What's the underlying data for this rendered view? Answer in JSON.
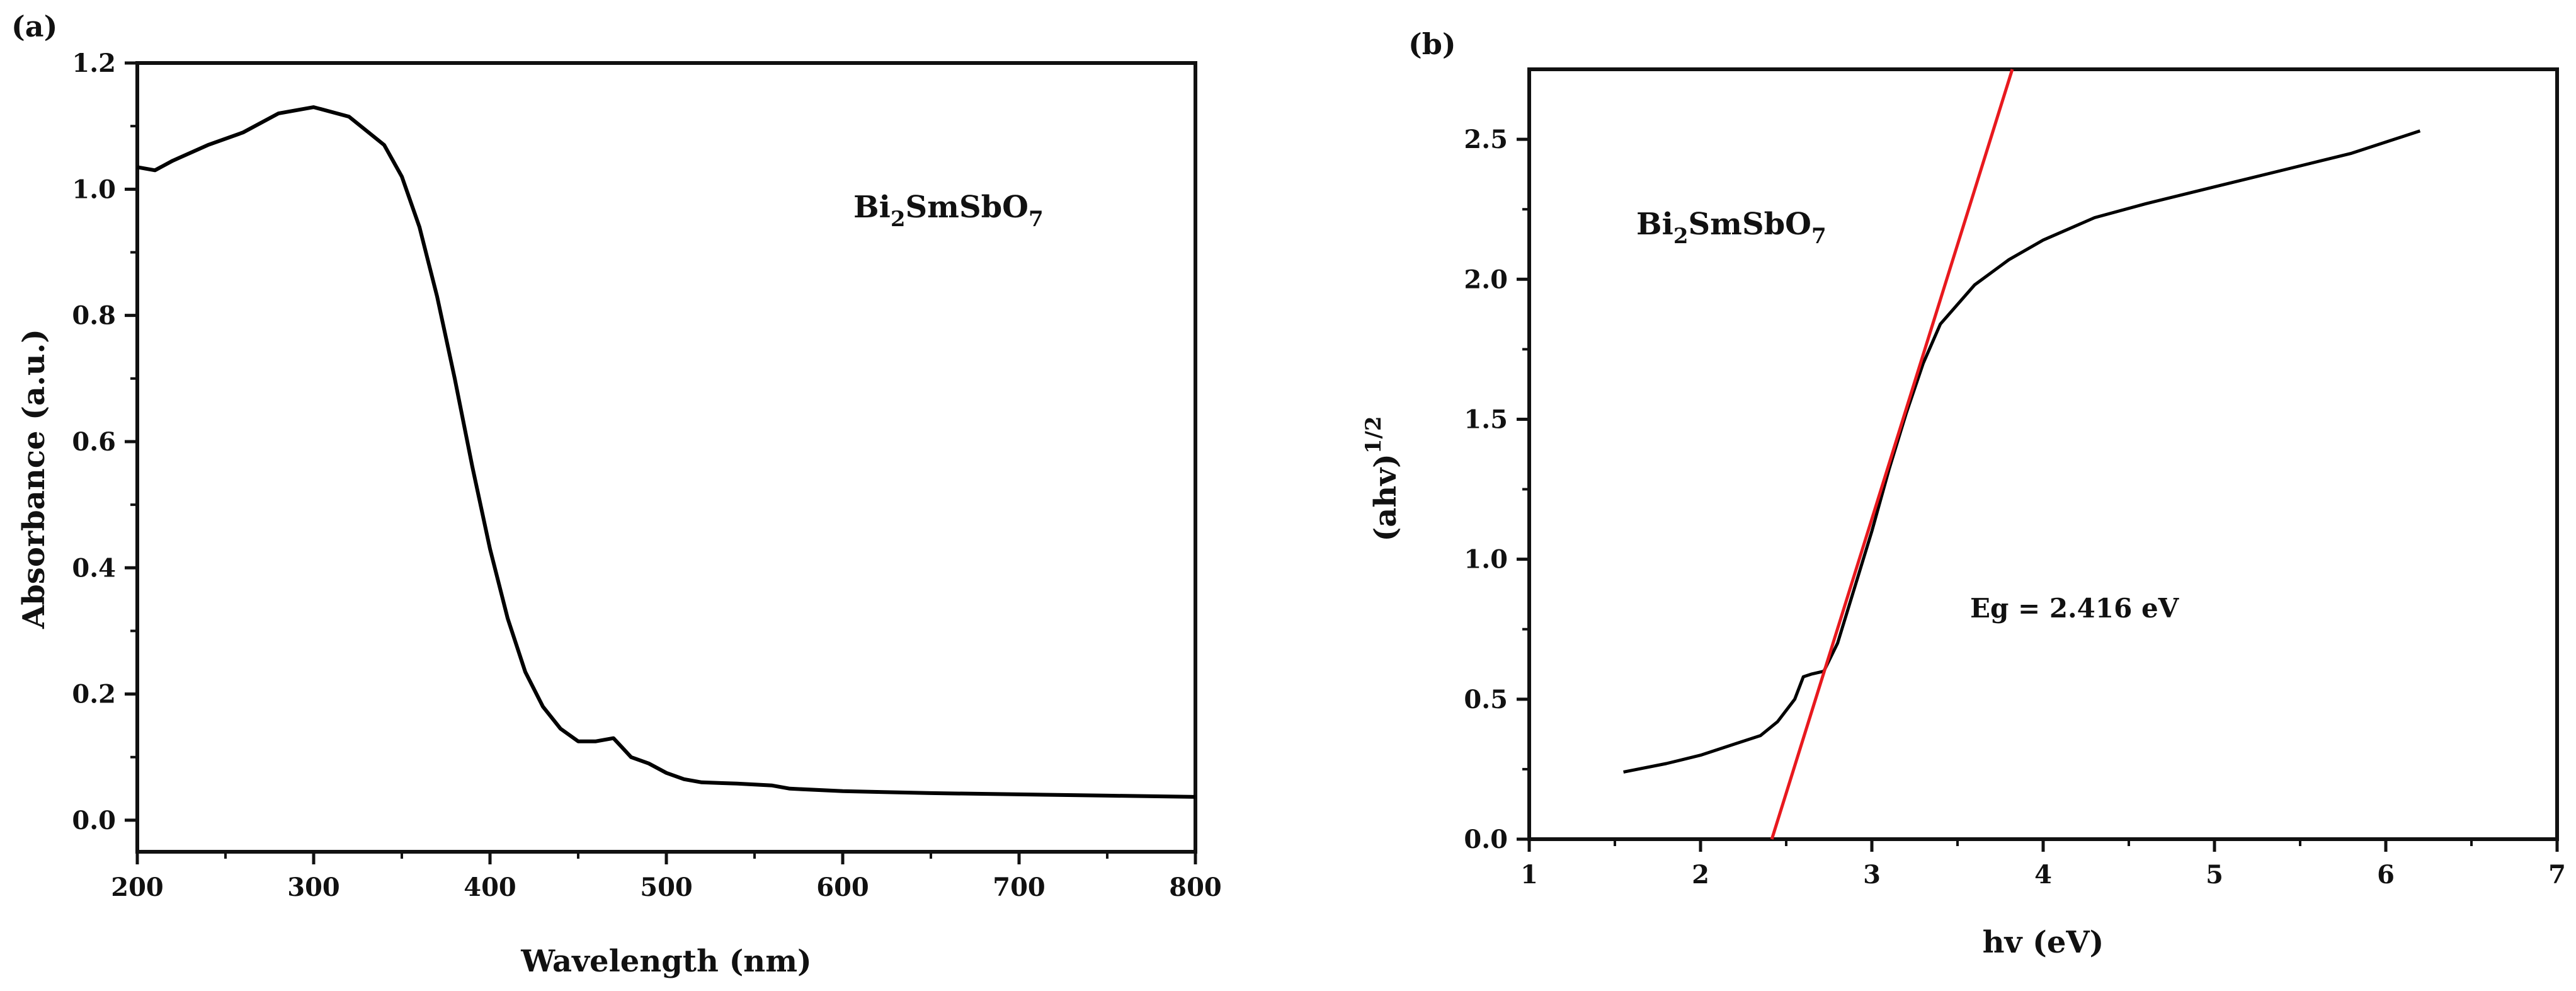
{
  "chart_data": [
    {
      "panel": "(a)",
      "type": "line",
      "xlabel": "Wavelength (nm)",
      "ylabel": "Absorbance (a.u.)",
      "xlim": [
        200,
        800
      ],
      "ylim": [
        -0.05,
        1.2
      ],
      "xticks": [
        200,
        300,
        400,
        500,
        600,
        700,
        800
      ],
      "yticks": [
        0.0,
        0.2,
        0.4,
        0.6,
        0.8,
        1.0,
        1.2
      ],
      "ytick_labels": [
        "0.0",
        "0.2",
        "0.4",
        "0.6",
        "0.8",
        "1.0",
        "1.2"
      ],
      "annotation": {
        "base": "Bi",
        "sub1": "2",
        "mid": "SmSbO",
        "sub2": "7"
      },
      "grid": false,
      "series": [
        {
          "color": "#000000",
          "x": [
            200,
            210,
            220,
            240,
            260,
            280,
            300,
            320,
            340,
            350,
            360,
            370,
            380,
            390,
            400,
            410,
            420,
            430,
            440,
            450,
            460,
            470,
            475,
            480,
            490,
            500,
            510,
            520,
            540,
            560,
            570,
            600,
            650,
            700,
            750,
            800
          ],
          "y": [
            1.035,
            1.03,
            1.045,
            1.07,
            1.09,
            1.12,
            1.13,
            1.115,
            1.07,
            1.02,
            0.94,
            0.83,
            0.7,
            0.56,
            0.43,
            0.32,
            0.235,
            0.18,
            0.145,
            0.125,
            0.125,
            0.13,
            0.115,
            0.1,
            0.09,
            0.075,
            0.065,
            0.06,
            0.058,
            0.055,
            0.05,
            0.046,
            0.043,
            0.041,
            0.039,
            0.037
          ]
        }
      ]
    },
    {
      "panel": "(b)",
      "type": "line",
      "xlabel": "hv (eV)",
      "ylabel": {
        "base": "(ahv)",
        "sup": "1/2"
      },
      "xlim": [
        1,
        7
      ],
      "ylim": [
        0,
        2.75
      ],
      "xticks": [
        1,
        2,
        3,
        4,
        5,
        6,
        7
      ],
      "yticks": [
        0.0,
        0.5,
        1.0,
        1.5,
        2.0,
        2.5
      ],
      "ytick_labels": [
        "0.0",
        "0.5",
        "1.0",
        "1.5",
        "2.0",
        "2.5"
      ],
      "annotation": {
        "base": "Bi",
        "sub1": "2",
        "mid": "SmSbO",
        "sub2": "7"
      },
      "eg_label": "Eg = 2.416 eV",
      "grid": false,
      "series": [
        {
          "color": "#000000",
          "x": [
            1.55,
            1.8,
            2.0,
            2.2,
            2.35,
            2.45,
            2.55,
            2.6,
            2.65,
            2.72,
            2.8,
            2.9,
            3.0,
            3.1,
            3.2,
            3.3,
            3.4,
            3.6,
            3.8,
            4.0,
            4.3,
            4.6,
            5.0,
            5.4,
            5.8,
            6.0,
            6.2
          ],
          "y": [
            0.24,
            0.27,
            0.3,
            0.34,
            0.37,
            0.42,
            0.5,
            0.58,
            0.59,
            0.6,
            0.7,
            0.9,
            1.1,
            1.32,
            1.52,
            1.7,
            1.84,
            1.98,
            2.07,
            2.14,
            2.22,
            2.27,
            2.33,
            2.39,
            2.45,
            2.49,
            2.53
          ]
        },
        {
          "color": "#e8191e",
          "x": [
            2.416,
            3.82
          ],
          "y": [
            0.0,
            2.75
          ]
        }
      ]
    }
  ]
}
